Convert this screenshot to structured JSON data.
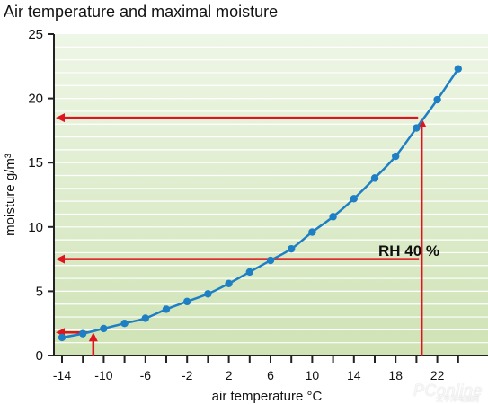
{
  "chart_data": {
    "type": "line",
    "title": "Air temperature and maximal moisture",
    "xlabel": "air temperature °C",
    "ylabel": "moisture g/m³",
    "xticks": [
      -14,
      -10,
      -6,
      -2,
      2,
      6,
      10,
      14,
      18,
      22
    ],
    "yticks": [
      0,
      5,
      10,
      15,
      20,
      25
    ],
    "xlim": [
      -15,
      25
    ],
    "ylim": [
      0,
      25
    ],
    "grid": true,
    "series": [
      {
        "x": [
          -14,
          -12,
          -10,
          -8,
          -6,
          -4,
          -2,
          0,
          2,
          4,
          6,
          8,
          10,
          12,
          14,
          16,
          18,
          20,
          22,
          24
        ],
        "values": [
          1.4,
          1.7,
          2.1,
          2.5,
          2.9,
          3.6,
          4.2,
          4.8,
          5.6,
          6.5,
          7.4,
          8.3,
          9.6,
          10.8,
          12.2,
          13.8,
          15.5,
          17.7,
          19.9,
          22.3
        ]
      }
    ],
    "annotations": {
      "rh_label": "RH 40 %",
      "guides": [
        {
          "from_x": 20.5,
          "to_y": 18.5
        },
        {
          "from_x": 20.5,
          "at_y": 7.5
        },
        {
          "from_x": -11,
          "to_y": 1.8
        }
      ]
    },
    "colors": {
      "background": "#e6f2d6",
      "gridline": "#ffffff",
      "line": "#1f7fc4",
      "marker": "#1f7fc4",
      "arrow": "#e0141e"
    }
  },
  "watermark": {
    "text": "PConline",
    "subtext": "太平洋电脑网"
  }
}
